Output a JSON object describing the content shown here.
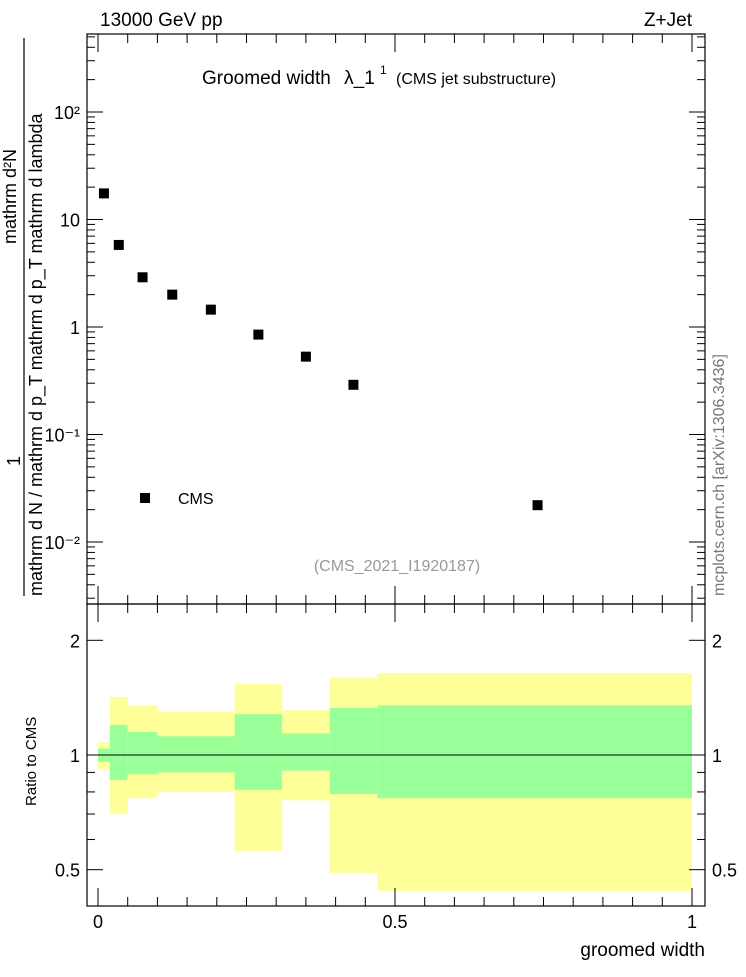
{
  "header": {
    "left": "13000 GeV pp",
    "right": "Z+Jet",
    "side_label": "mcplots.cern.ch [arXiv:1306.3436]"
  },
  "main_plot": {
    "title_prefix": "Groomed width",
    "title_symbol": "λ_1",
    "title_sup": "1",
    "title_suffix": "(CMS jet substructure)",
    "watermark": "(CMS_2021_I1920187)",
    "ylabel_num": "1",
    "ylabel_den": "mathrm d N / mathrm d p_T mathrm d p_T mathrm d lambda",
    "ylabel_top": "mathrm d²N",
    "ytick_labels": [
      "10⁻²",
      "10⁻¹",
      "1",
      "10",
      "10²"
    ],
    "legend_label": "CMS"
  },
  "ratio_plot": {
    "ylabel": "Ratio to CMS",
    "ytick_labels": [
      "0.5",
      "1",
      "2"
    ],
    "ytick_labels_right": [
      "0.5",
      "1",
      "2"
    ]
  },
  "xaxis": {
    "label": "groomed width",
    "tick_labels": [
      "0",
      "0.5",
      "1"
    ]
  },
  "colors": {
    "band_outer": "#ffff99",
    "band_inner": "#99ff99",
    "marker": "#000000"
  },
  "chart_data": [
    {
      "type": "scatter",
      "series": [
        {
          "name": "CMS",
          "x": [
            0.01,
            0.035,
            0.075,
            0.125,
            0.19,
            0.27,
            0.35,
            0.43,
            0.74
          ],
          "y": [
            17.5,
            5.8,
            2.9,
            2.0,
            1.45,
            0.85,
            0.53,
            0.29,
            0.022
          ]
        }
      ],
      "xlim": [
        0,
        1
      ],
      "ylim": [
        0.003,
        500
      ],
      "yscale": "log",
      "legend": "lower-left"
    },
    {
      "type": "area",
      "ylabel": "Ratio to CMS",
      "xlim": [
        0,
        1
      ],
      "ylim": [
        0.4,
        2.4
      ],
      "yscale": "log",
      "reference_line": 1,
      "bins": [
        {
          "x0": 0.0,
          "x1": 0.02,
          "outer": [
            0.92,
            1.08
          ],
          "inner": [
            0.96,
            1.04
          ]
        },
        {
          "x0": 0.02,
          "x1": 0.05,
          "outer": [
            0.7,
            1.42
          ],
          "inner": [
            0.86,
            1.2
          ]
        },
        {
          "x0": 0.05,
          "x1": 0.1,
          "outer": [
            0.77,
            1.35
          ],
          "inner": [
            0.89,
            1.15
          ]
        },
        {
          "x0": 0.1,
          "x1": 0.15,
          "outer": [
            0.8,
            1.3
          ],
          "inner": [
            0.9,
            1.12
          ]
        },
        {
          "x0": 0.15,
          "x1": 0.23,
          "outer": [
            0.8,
            1.3
          ],
          "inner": [
            0.9,
            1.12
          ]
        },
        {
          "x0": 0.23,
          "x1": 0.31,
          "outer": [
            0.56,
            1.54
          ],
          "inner": [
            0.81,
            1.28
          ]
        },
        {
          "x0": 0.31,
          "x1": 0.39,
          "outer": [
            0.76,
            1.31
          ],
          "inner": [
            0.91,
            1.14
          ]
        },
        {
          "x0": 0.39,
          "x1": 0.47,
          "outer": [
            0.49,
            1.6
          ],
          "inner": [
            0.79,
            1.33
          ]
        },
        {
          "x0": 0.47,
          "x1": 1.0,
          "outer": [
            0.44,
            1.64
          ],
          "inner": [
            0.77,
            1.35
          ]
        }
      ]
    }
  ]
}
